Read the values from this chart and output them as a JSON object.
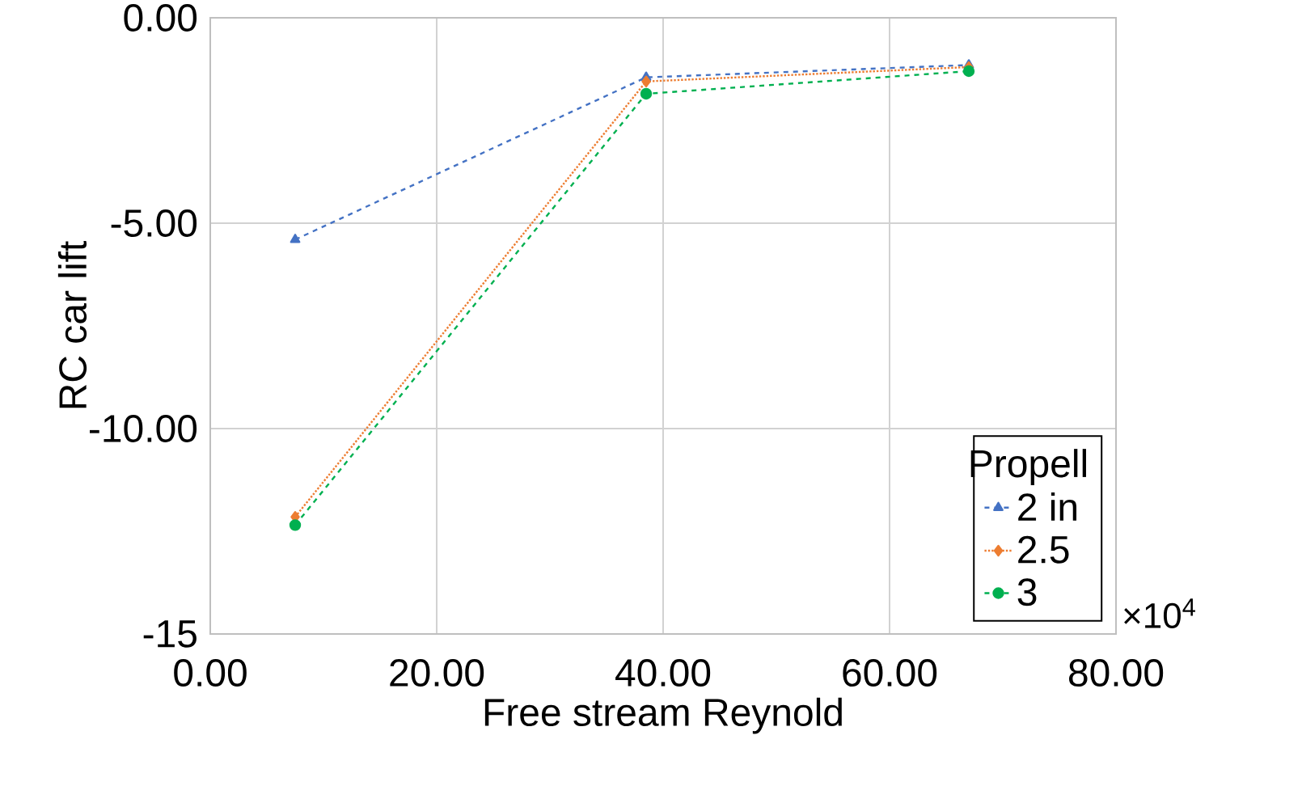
{
  "chart_data": {
    "type": "line",
    "xlabel": "Free stream Reynold",
    "ylabel": "RC car lift",
    "legend_title": "Propell",
    "x": [
      7.5,
      38.5,
      67
    ],
    "series": [
      {
        "name": "2 in",
        "color": "#4472c4",
        "marker": "triangle",
        "line_style": "dashed",
        "values": [
          -5.4,
          -1.45,
          -1.15
        ]
      },
      {
        "name": "2.5",
        "color": "#ed7d31",
        "marker": "diamond",
        "line_style": "dotted",
        "values": [
          -12.15,
          -1.55,
          -1.2
        ]
      },
      {
        "name": "3",
        "color": "#00b050",
        "marker": "circle",
        "line_style": "dashed",
        "values": [
          -12.35,
          -1.85,
          -1.3
        ]
      }
    ],
    "xlim": [
      0,
      80
    ],
    "xticks": [
      {
        "value": 0,
        "label": "0.00"
      },
      {
        "value": 20,
        "label": "20.00"
      },
      {
        "value": 40,
        "label": "40.00"
      },
      {
        "value": 60,
        "label": "60.00"
      },
      {
        "value": 80,
        "label": "80.00"
      }
    ],
    "ylim": [
      -15,
      0
    ],
    "yticks": [
      {
        "value": 0,
        "label": "0.00"
      },
      {
        "value": -5,
        "label": "-5.00"
      },
      {
        "value": -10,
        "label": "-10.00"
      },
      {
        "value": -15,
        "label": "-15"
      }
    ],
    "grid": true,
    "legend": "right",
    "annotations": [
      "×10$^{4}$"
    ]
  }
}
